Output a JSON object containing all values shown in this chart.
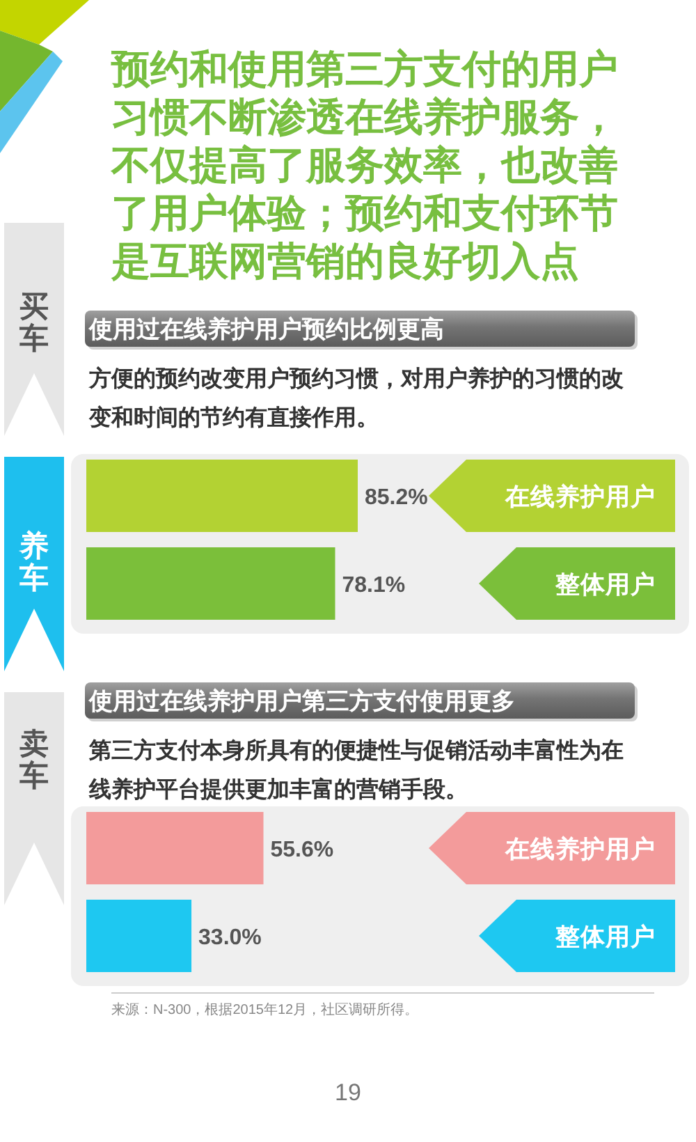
{
  "chart_data": [
    {
      "type": "bar",
      "orientation": "horizontal",
      "title": "使用过在线养护用户预约比例更高",
      "subtitle": "方便的预约改变用户预约习惯，对用户养护的习惯的改变和时间的节约有直接作用。",
      "categories": [
        "在线养护用户",
        "整体用户"
      ],
      "values": [
        85.2,
        78.1
      ],
      "colors": [
        "#b3d233",
        "#7bbf3a"
      ],
      "value_labels": [
        "85.2%",
        "78.1%"
      ],
      "annotations": [
        "预约和使用第三方支付的用户习惯不断渗透在线养护服务，不仅提高了服务效率，也改善了用户体验；预约和支付环节是互联网营销的良好切入点",
        "买车",
        "养车"
      ]
    },
    {
      "type": "bar",
      "orientation": "horizontal",
      "title": "使用过在线养护用户第三方支付使用更多",
      "subtitle": "第三方支付本身所具有的便捷性与促销活动丰富性为在线养护平台提供更加丰富的营销手段。",
      "categories": [
        "在线养护用户",
        "整体用户"
      ],
      "values": [
        55.6,
        33.0
      ],
      "colors": [
        "#f39b9b",
        "#1ec8f1"
      ],
      "value_labels": [
        "55.6%",
        "33.0%"
      ],
      "annotations": [
        "卖车",
        "来源：N-300，根据2015年12月，社区调研所得。",
        "19"
      ]
    }
  ]
}
